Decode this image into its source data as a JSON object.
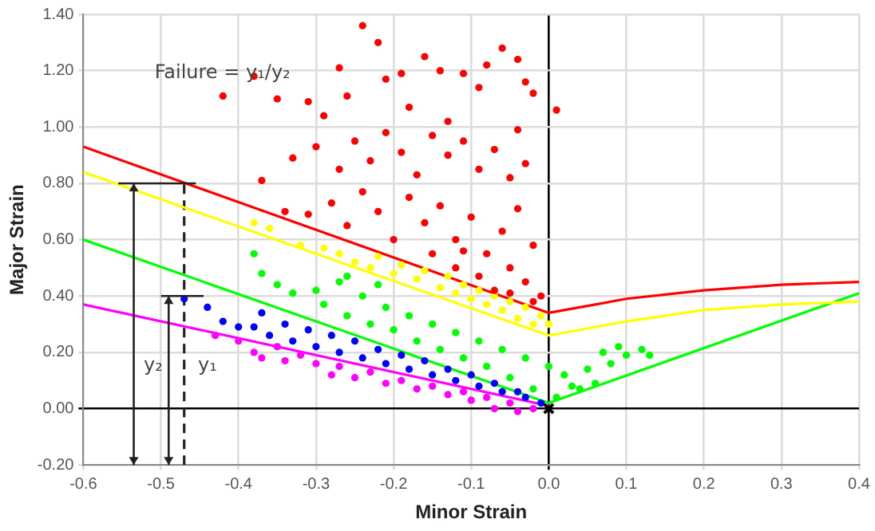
{
  "chart_data": {
    "type": "scatter",
    "xlabel": "Minor Strain",
    "ylabel": "Major Strain",
    "xlim": [
      -0.6,
      0.4
    ],
    "xticks": [
      -0.6,
      -0.5,
      -0.4,
      -0.3,
      -0.2,
      -0.1,
      {
        "value": 0,
        "label": "0.0"
      },
      0.1,
      0.2,
      0.3,
      0.4
    ],
    "ylim": [
      -0.2,
      1.4
    ],
    "yticks": [
      {
        "value": -0.2,
        "label": "-0.20"
      },
      {
        "value": 0,
        "label": "0.00"
      },
      {
        "value": 0.2,
        "label": "0.20"
      },
      {
        "value": 0.4,
        "label": "0.40"
      },
      {
        "value": 0.6,
        "label": "0.60"
      },
      {
        "value": 0.8,
        "label": "0.80"
      },
      {
        "value": 1.0,
        "label": "1.00"
      },
      {
        "value": 1.2,
        "label": "1.20"
      },
      {
        "value": 1.4,
        "label": "1.40"
      }
    ],
    "grid": true,
    "legend": false,
    "marker": "circle",
    "annotations": [
      "Failure = y₁/y₂",
      "y₂",
      "y₁"
    ],
    "series": [
      {
        "color": "#ff0000",
        "x": [
          -0.42,
          -0.38,
          -0.35,
          -0.31,
          -0.29,
          -0.27,
          -0.26,
          -0.24,
          -0.22,
          -0.21,
          -0.19,
          -0.18,
          -0.16,
          -0.14,
          -0.13,
          -0.11,
          -0.09,
          -0.08,
          -0.06,
          -0.04,
          -0.03,
          -0.02,
          0.01,
          -0.37,
          -0.33,
          -0.3,
          -0.27,
          -0.25,
          -0.23,
          -0.21,
          -0.19,
          -0.17,
          -0.15,
          -0.13,
          -0.11,
          -0.09,
          -0.07,
          -0.05,
          -0.04,
          -0.03,
          -0.34,
          -0.31,
          -0.28,
          -0.26,
          -0.24,
          -0.22,
          -0.2,
          -0.18,
          -0.16,
          -0.14,
          -0.12,
          -0.1,
          -0.08,
          -0.06,
          -0.05,
          -0.04,
          -0.03,
          -0.02,
          -0.01,
          -0.12,
          -0.09,
          -0.07,
          -0.15,
          -0.11,
          -0.05,
          -0.02
        ],
        "values": [
          1.11,
          1.18,
          1.1,
          1.09,
          1.04,
          1.21,
          1.11,
          1.36,
          1.3,
          1.17,
          1.19,
          1.07,
          1.25,
          1.2,
          1.02,
          1.19,
          1.14,
          1.22,
          1.28,
          1.24,
          1.16,
          1.12,
          1.06,
          0.81,
          0.89,
          0.93,
          0.85,
          0.95,
          0.88,
          0.98,
          0.91,
          0.83,
          0.97,
          0.9,
          0.95,
          0.85,
          0.92,
          0.82,
          0.99,
          0.87,
          0.7,
          0.69,
          0.73,
          0.65,
          0.77,
          0.7,
          0.6,
          0.75,
          0.66,
          0.72,
          0.6,
          0.68,
          0.55,
          0.63,
          0.5,
          0.71,
          0.45,
          0.58,
          0.4,
          0.5,
          0.47,
          0.42,
          0.55,
          0.56,
          0.41,
          0.38
        ]
      },
      {
        "color": "#ffff00",
        "x": [
          -0.32,
          -0.29,
          -0.27,
          -0.25,
          -0.23,
          -0.22,
          -0.2,
          -0.19,
          -0.17,
          -0.16,
          -0.14,
          -0.13,
          -0.12,
          -0.11,
          -0.1,
          -0.09,
          -0.08,
          -0.07,
          -0.06,
          -0.05,
          -0.04,
          -0.03,
          -0.02,
          -0.01,
          0.0,
          -0.36,
          -0.38
        ],
        "values": [
          0.58,
          0.57,
          0.55,
          0.52,
          0.5,
          0.54,
          0.48,
          0.51,
          0.46,
          0.49,
          0.43,
          0.47,
          0.41,
          0.44,
          0.39,
          0.42,
          0.37,
          0.4,
          0.35,
          0.38,
          0.32,
          0.36,
          0.3,
          0.33,
          0.3,
          0.64,
          0.66
        ]
      },
      {
        "color": "#00ff00",
        "x": [
          -0.38,
          -0.37,
          -0.35,
          -0.33,
          -0.3,
          -0.29,
          -0.27,
          -0.26,
          -0.24,
          -0.23,
          -0.21,
          -0.2,
          -0.18,
          -0.17,
          -0.15,
          -0.14,
          -0.12,
          -0.11,
          -0.09,
          -0.08,
          -0.06,
          -0.05,
          -0.03,
          -0.02,
          0.0,
          0.01,
          0.02,
          0.03,
          0.04,
          0.05,
          0.06,
          0.07,
          0.08,
          0.09,
          0.1,
          0.12,
          0.13,
          -0.26,
          -0.22
        ],
        "values": [
          0.55,
          0.48,
          0.44,
          0.41,
          0.42,
          0.37,
          0.45,
          0.33,
          0.4,
          0.3,
          0.36,
          0.28,
          0.33,
          0.24,
          0.3,
          0.21,
          0.27,
          0.18,
          0.24,
          0.15,
          0.21,
          0.11,
          0.18,
          0.07,
          0.15,
          0.04,
          0.12,
          0.08,
          0.07,
          0.14,
          0.09,
          0.2,
          0.16,
          0.22,
          0.19,
          0.21,
          0.19,
          0.47,
          0.44
        ]
      },
      {
        "color": "#0000ff",
        "x": [
          -0.47,
          -0.44,
          -0.42,
          -0.4,
          -0.38,
          -0.37,
          -0.36,
          -0.34,
          -0.33,
          -0.31,
          -0.3,
          -0.28,
          -0.27,
          -0.25,
          -0.24,
          -0.22,
          -0.21,
          -0.19,
          -0.18,
          -0.16,
          -0.15,
          -0.13,
          -0.12,
          -0.1,
          -0.09,
          -0.07,
          -0.06,
          -0.04,
          -0.03,
          -0.01
        ],
        "values": [
          0.39,
          0.36,
          0.31,
          0.29,
          0.29,
          0.34,
          0.26,
          0.3,
          0.24,
          0.28,
          0.22,
          0.26,
          0.2,
          0.24,
          0.18,
          0.21,
          0.16,
          0.19,
          0.14,
          0.17,
          0.12,
          0.14,
          0.1,
          0.12,
          0.08,
          0.09,
          0.06,
          0.06,
          0.04,
          0.02
        ]
      },
      {
        "color": "#ff00ff",
        "x": [
          -0.43,
          -0.4,
          -0.38,
          -0.37,
          -0.35,
          -0.34,
          -0.32,
          -0.3,
          -0.28,
          -0.27,
          -0.25,
          -0.23,
          -0.21,
          -0.19,
          -0.17,
          -0.15,
          -0.13,
          -0.11,
          -0.1,
          -0.08,
          -0.07,
          -0.05,
          -0.04,
          -0.02
        ],
        "values": [
          0.26,
          0.24,
          0.2,
          0.18,
          0.22,
          0.17,
          0.19,
          0.16,
          0.12,
          0.15,
          0.11,
          0.13,
          0.09,
          0.1,
          0.07,
          0.08,
          0.05,
          0.06,
          0.03,
          0.04,
          0.0,
          0.02,
          -0.01,
          0.0
        ]
      },
      {
        "type": "line",
        "color": "#ff0000",
        "marker": "none",
        "x": [
          -0.6,
          0,
          0.1,
          0.2,
          0.3,
          0.4
        ],
        "values": [
          0.93,
          0.34,
          0.39,
          0.42,
          0.44,
          0.45
        ]
      },
      {
        "type": "line",
        "color": "#ffff00",
        "marker": "none",
        "x": [
          -0.6,
          0,
          0.1,
          0.2,
          0.3,
          0.4
        ],
        "values": [
          0.84,
          0.26,
          0.31,
          0.35,
          0.37,
          0.38
        ]
      },
      {
        "type": "line",
        "color": "#00ff00",
        "marker": "none",
        "x": [
          -0.6,
          0,
          0.4
        ],
        "values": [
          0.6,
          0.02,
          0.41
        ]
      },
      {
        "type": "line",
        "color": "#ff00ff",
        "marker": "none",
        "x": [
          -0.6,
          0
        ],
        "values": [
          0.37,
          0.01
        ]
      },
      {
        "type": "line",
        "color": "#222222",
        "marker": "none",
        "line_style": "dashed",
        "x": [
          -0.47,
          -0.47
        ],
        "values": [
          -0.2,
          0.81
        ]
      },
      {
        "color": "#000000",
        "marker": "cross",
        "x": [
          0
        ],
        "values": [
          0
        ]
      }
    ]
  }
}
